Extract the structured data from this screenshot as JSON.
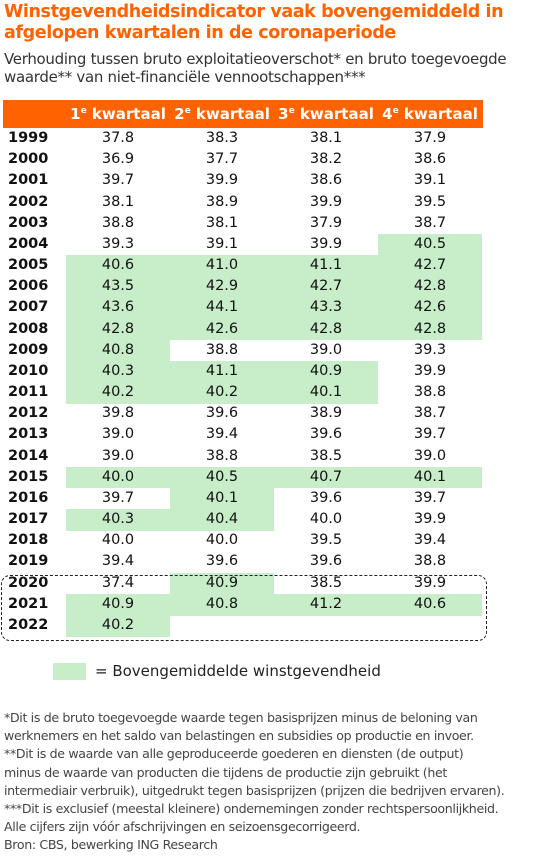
{
  "title": "Winstgevendheidsindicator vaak bovengemiddeld in afgelopen kwartalen in de coronaperiode",
  "subtitle": "Verhouding tussen bruto exploitatieoverschot* en bruto toegevoegde waarde** van niet-financiële vennootschappen***",
  "colors": {
    "accent": "#ff6200",
    "highlight": "#c8eec9",
    "text": "#111111"
  },
  "chart_data": {
    "type": "table",
    "columns": [
      {
        "num": "1",
        "sup": "e",
        "label": "kwartaal"
      },
      {
        "num": "2",
        "sup": "e",
        "label": "kwartaal"
      },
      {
        "num": "3",
        "sup": "e",
        "label": "kwartaal"
      },
      {
        "num": "4",
        "sup": "e",
        "label": "kwartaal"
      }
    ],
    "rows": [
      {
        "year": "1999",
        "values": [
          "37.8",
          "38.3",
          "38.1",
          "37.9"
        ],
        "above": [
          0,
          0,
          0,
          0
        ]
      },
      {
        "year": "2000",
        "values": [
          "36.9",
          "37.7",
          "38.2",
          "38.6"
        ],
        "above": [
          0,
          0,
          0,
          0
        ]
      },
      {
        "year": "2001",
        "values": [
          "39.7",
          "39.9",
          "38.6",
          "39.1"
        ],
        "above": [
          0,
          0,
          0,
          0
        ]
      },
      {
        "year": "2002",
        "values": [
          "38.1",
          "38.9",
          "39.9",
          "39.5"
        ],
        "above": [
          0,
          0,
          0,
          0
        ]
      },
      {
        "year": "2003",
        "values": [
          "38.8",
          "38.1",
          "37.9",
          "38.7"
        ],
        "above": [
          0,
          0,
          0,
          0
        ]
      },
      {
        "year": "2004",
        "values": [
          "39.3",
          "39.1",
          "39.9",
          "40.5"
        ],
        "above": [
          0,
          0,
          0,
          1
        ]
      },
      {
        "year": "2005",
        "values": [
          "40.6",
          "41.0",
          "41.1",
          "42.7"
        ],
        "above": [
          1,
          1,
          1,
          1
        ]
      },
      {
        "year": "2006",
        "values": [
          "43.5",
          "42.9",
          "42.7",
          "42.8"
        ],
        "above": [
          1,
          1,
          1,
          1
        ]
      },
      {
        "year": "2007",
        "values": [
          "43.6",
          "44.1",
          "43.3",
          "42.6"
        ],
        "above": [
          1,
          1,
          1,
          1
        ]
      },
      {
        "year": "2008",
        "values": [
          "42.8",
          "42.6",
          "42.8",
          "42.8"
        ],
        "above": [
          1,
          1,
          1,
          1
        ]
      },
      {
        "year": "2009",
        "values": [
          "40.8",
          "38.8",
          "39.0",
          "39.3"
        ],
        "above": [
          1,
          0,
          0,
          0
        ]
      },
      {
        "year": "2010",
        "values": [
          "40.3",
          "41.1",
          "40.9",
          "39.9"
        ],
        "above": [
          1,
          1,
          1,
          0
        ]
      },
      {
        "year": "2011",
        "values": [
          "40.2",
          "40.2",
          "40.1",
          "38.8"
        ],
        "above": [
          1,
          1,
          1,
          0
        ]
      },
      {
        "year": "2012",
        "values": [
          "39.8",
          "39.6",
          "38.9",
          "38.7"
        ],
        "above": [
          0,
          0,
          0,
          0
        ]
      },
      {
        "year": "2013",
        "values": [
          "39.0",
          "39.4",
          "39.6",
          "39.7"
        ],
        "above": [
          0,
          0,
          0,
          0
        ]
      },
      {
        "year": "2014",
        "values": [
          "39.0",
          "38.8",
          "38.5",
          "39.0"
        ],
        "above": [
          0,
          0,
          0,
          0
        ]
      },
      {
        "year": "2015",
        "values": [
          "40.0",
          "40.5",
          "40.7",
          "40.1"
        ],
        "above": [
          1,
          1,
          1,
          1
        ]
      },
      {
        "year": "2016",
        "values": [
          "39.7",
          "40.1",
          "39.6",
          "39.7"
        ],
        "above": [
          0,
          1,
          0,
          0
        ]
      },
      {
        "year": "2017",
        "values": [
          "40.3",
          "40.4",
          "40.0",
          "39.9"
        ],
        "above": [
          1,
          1,
          0,
          0
        ]
      },
      {
        "year": "2018",
        "values": [
          "40.0",
          "40.0",
          "39.5",
          "39.4"
        ],
        "above": [
          0,
          0,
          0,
          0
        ]
      },
      {
        "year": "2019",
        "values": [
          "39.4",
          "39.6",
          "39.6",
          "38.8"
        ],
        "above": [
          0,
          0,
          0,
          0
        ]
      },
      {
        "year": "2020",
        "values": [
          "37.4",
          "40.9",
          "38.5",
          "39.9"
        ],
        "above": [
          0,
          1,
          0,
          0
        ]
      },
      {
        "year": "2021",
        "values": [
          "40.9",
          "40.8",
          "41.2",
          "40.6"
        ],
        "above": [
          1,
          1,
          1,
          1
        ]
      },
      {
        "year": "2022",
        "values": [
          "40.2",
          "",
          "",
          ""
        ],
        "above": [
          1,
          0,
          0,
          0
        ]
      }
    ],
    "corona_period_years": [
      "2020",
      "2021",
      "2022"
    ]
  },
  "legend": {
    "label": "= Bovengemiddelde winstgevendheid"
  },
  "footnotes": [
    "*Dit is de bruto toegevoegde waarde tegen basisprijzen minus de beloning van",
    "werknemers en het saldo van belastingen en subsidies op productie en invoer.",
    "**Dit is de waarde van alle geproduceerde goederen en diensten (de output)",
    "minus de waarde van producten die tijdens de productie zijn gebruikt (het",
    "intermediair verbruik), uitgedrukt tegen basisprijzen (prijzen die bedrijven ervaren).",
    "***Dit is exclusief (meestal kleinere) ondernemingen zonder rechtspersoonlijkheid.",
    "Alle cijfers zijn vóór afschrijvingen en seizoensgecorrigeerd.",
    "Bron: CBS, bewerking ING Research"
  ]
}
